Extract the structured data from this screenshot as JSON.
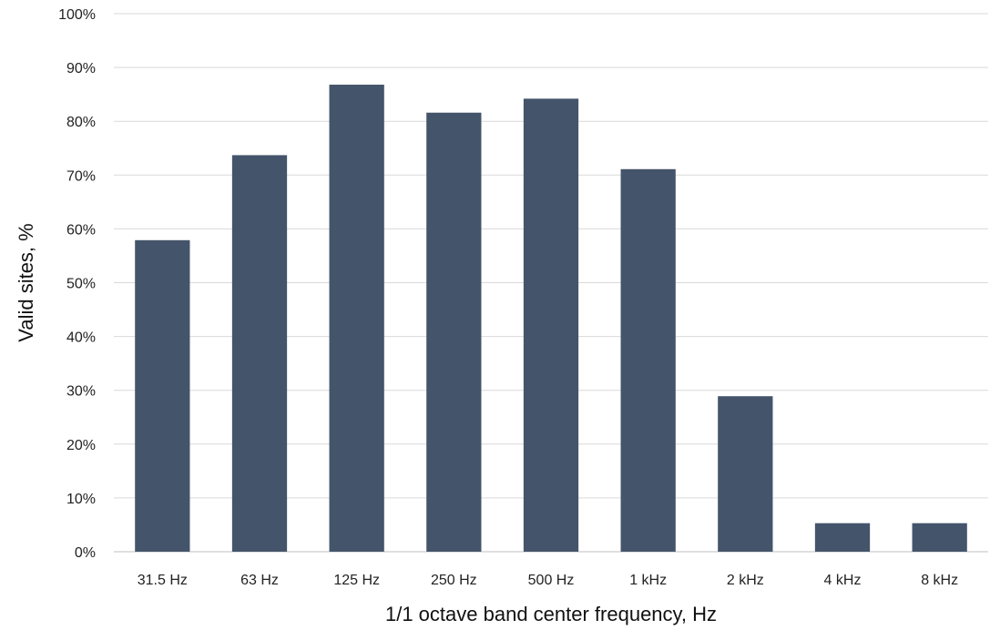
{
  "chart_data": {
    "type": "bar",
    "title": "",
    "xlabel": "1/1 octave band center frequency, Hz",
    "ylabel": "Valid sites, %",
    "categories": [
      "31.5 Hz",
      "63 Hz",
      "125 Hz",
      "250 Hz",
      "500 Hz",
      "1 kHz",
      "2 kHz",
      "4 kHz",
      "8 kHz"
    ],
    "values": [
      57.9,
      73.7,
      86.8,
      81.6,
      84.2,
      71.1,
      28.9,
      5.3,
      5.3
    ],
    "ylim": [
      0,
      100
    ],
    "yticks": [
      0,
      10,
      20,
      30,
      40,
      50,
      60,
      70,
      80,
      90,
      100
    ],
    "ytick_labels": [
      "0%",
      "10%",
      "20%",
      "30%",
      "40%",
      "50%",
      "60%",
      "70%",
      "80%",
      "90%",
      "100%"
    ],
    "grid": true,
    "legend": "none",
    "colors": {
      "bar": "#44546A",
      "grid": "#D9D9D9",
      "axis": "#BFBFBF"
    }
  }
}
